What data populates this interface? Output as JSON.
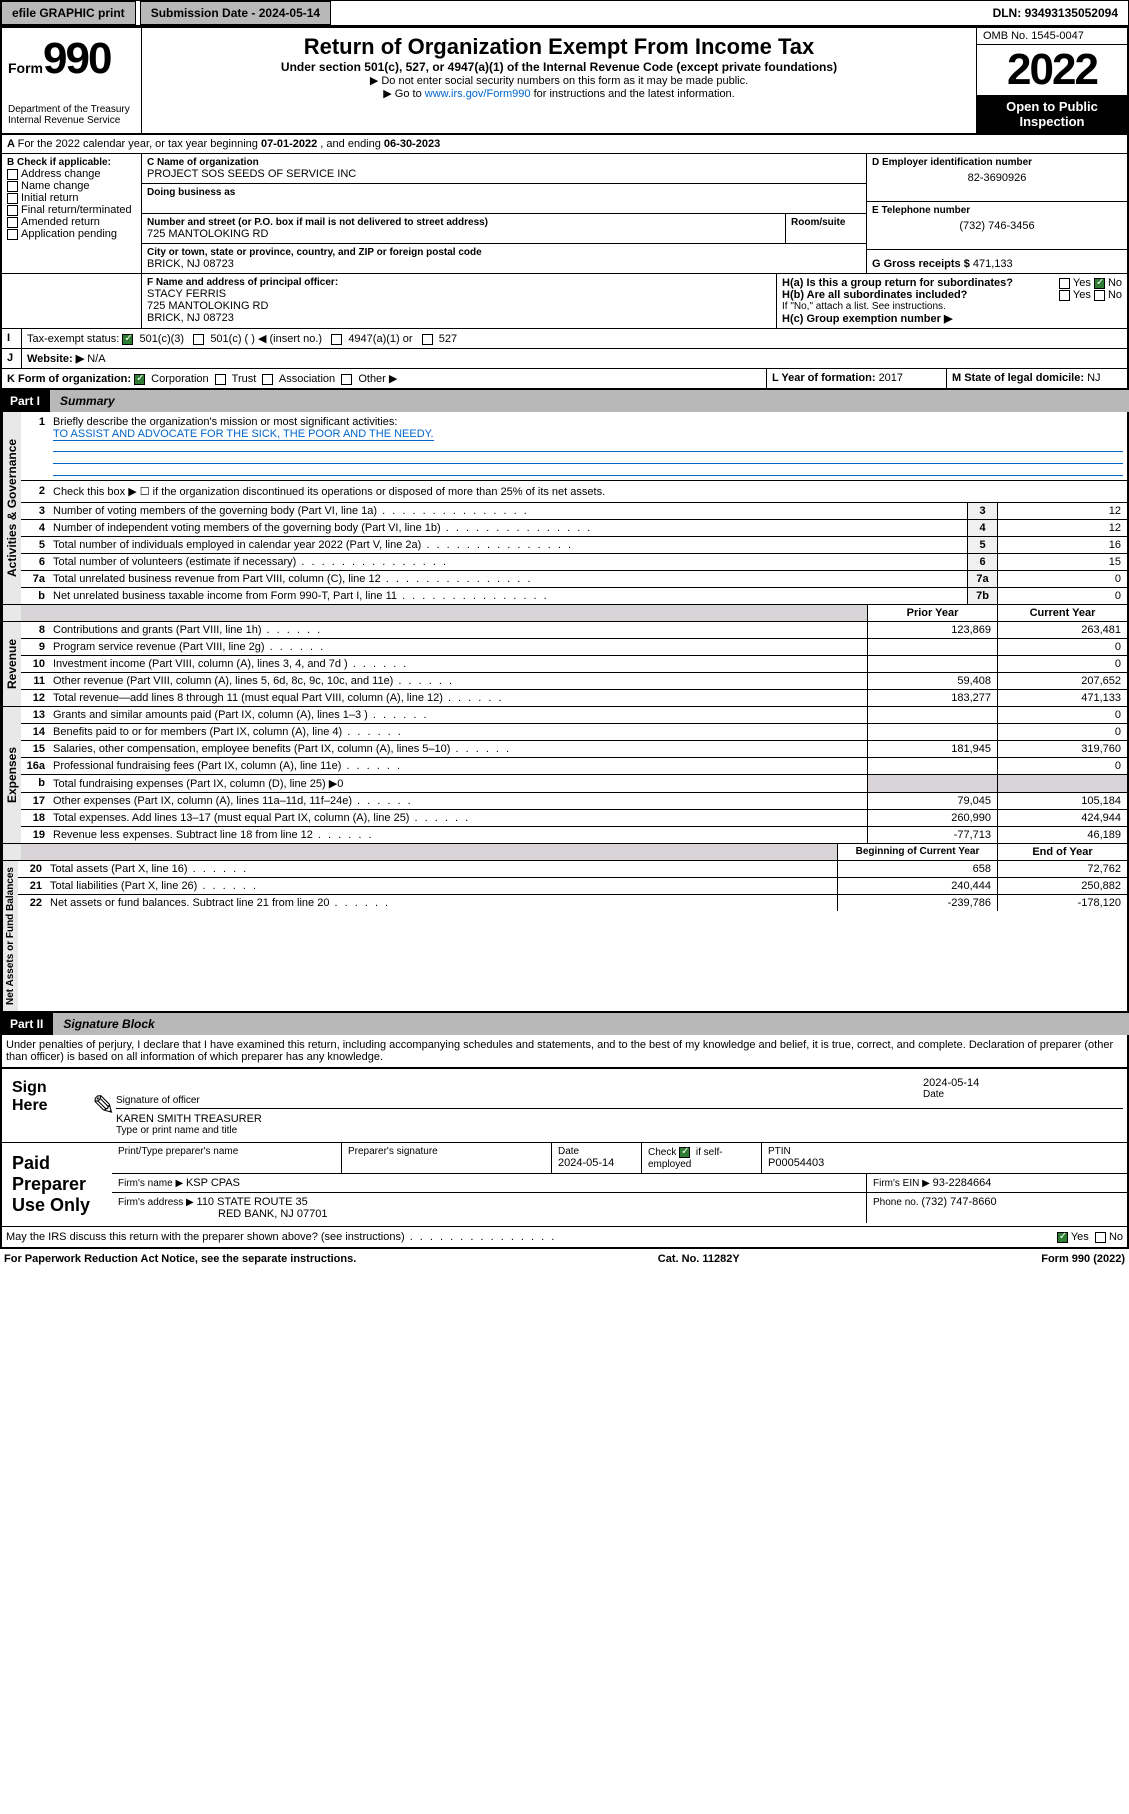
{
  "topbar": {
    "efile": "efile GRAPHIC print",
    "subdate_label": "Submission Date - ",
    "subdate": "2024-05-14",
    "dln_label": "DLN: ",
    "dln": "93493135052094"
  },
  "header": {
    "form_word": "Form",
    "form_num": "990",
    "dept": "Department of the Treasury",
    "irs": "Internal Revenue Service",
    "title": "Return of Organization Exempt From Income Tax",
    "subtitle": "Under section 501(c), 527, or 4947(a)(1) of the Internal Revenue Code (except private foundations)",
    "hint1": "▶ Do not enter social security numbers on this form as it may be made public.",
    "hint2_prefix": "▶ Go to ",
    "hint2_link": "www.irs.gov/Form990",
    "hint2_suffix": " for instructions and the latest information.",
    "omb": "OMB No. 1545-0047",
    "year": "2022",
    "open": "Open to Public Inspection"
  },
  "A": {
    "text": "For the 2022 calendar year, or tax year beginning ",
    "begin": "07-01-2022",
    "mid": " , and ending ",
    "end": "06-30-2023"
  },
  "B": {
    "label": "B Check if applicable:",
    "items": [
      "Address change",
      "Name change",
      "Initial return",
      "Final return/terminated",
      "Amended return",
      "Application pending"
    ]
  },
  "C": {
    "name_label": "C Name of organization",
    "name": "PROJECT SOS SEEDS OF SERVICE INC",
    "dba_label": "Doing business as",
    "dba": "",
    "addr_label": "Number and street (or P.O. box if mail is not delivered to street address)",
    "room_label": "Room/suite",
    "addr": "725 MANTOLOKING RD",
    "city_label": "City or town, state or province, country, and ZIP or foreign postal code",
    "city": "BRICK, NJ  08723"
  },
  "D": {
    "label": "D Employer identification number",
    "value": "82-3690926"
  },
  "E": {
    "label": "E Telephone number",
    "value": "(732) 746-3456"
  },
  "G": {
    "label": "G Gross receipts $ ",
    "value": "471,133"
  },
  "F": {
    "label": "F Name and address of principal officer:",
    "name": "STACY FERRIS",
    "addr1": "725 MANTOLOKING RD",
    "addr2": "BRICK, NJ  08723"
  },
  "H": {
    "a": "H(a)  Is this a group return for subordinates?",
    "b": "H(b)  Are all subordinates included?",
    "b_note": "If \"No,\" attach a list. See instructions.",
    "c": "H(c)  Group exemption number ▶",
    "yes": "Yes",
    "no": "No"
  },
  "I": {
    "label": "Tax-exempt status:",
    "opts": [
      "501(c)(3)",
      "501(c) (  ) ◀ (insert no.)",
      "4947(a)(1) or",
      "527"
    ]
  },
  "J": {
    "label": "Website: ▶",
    "value": "N/A"
  },
  "K": {
    "label": "K Form of organization:",
    "opts": [
      "Corporation",
      "Trust",
      "Association",
      "Other ▶"
    ]
  },
  "L": {
    "label": "L Year of formation: ",
    "value": "2017"
  },
  "M": {
    "label": "M State of legal domicile: ",
    "value": "NJ"
  },
  "part1": {
    "label": "Part I",
    "title": "Summary"
  },
  "summary": {
    "line1_label": "Briefly describe the organization's mission or most significant activities:",
    "line1_text": "TO ASSIST AND ADVOCATE FOR THE SICK, THE POOR AND THE NEEDY.",
    "line2": "Check this box ▶ ☐  if the organization discontinued its operations or disposed of more than 25% of its net assets.",
    "rows_a": [
      {
        "n": "3",
        "d": "Number of voting members of the governing body (Part VI, line 1a)",
        "box": "3",
        "v": "12"
      },
      {
        "n": "4",
        "d": "Number of independent voting members of the governing body (Part VI, line 1b)",
        "box": "4",
        "v": "12"
      },
      {
        "n": "5",
        "d": "Total number of individuals employed in calendar year 2022 (Part V, line 2a)",
        "box": "5",
        "v": "16"
      },
      {
        "n": "6",
        "d": "Total number of volunteers (estimate if necessary)",
        "box": "6",
        "v": "15"
      },
      {
        "n": "7a",
        "d": "Total unrelated business revenue from Part VIII, column (C), line 12",
        "box": "7a",
        "v": "0"
      },
      {
        "n": "b",
        "d": "Net unrelated business taxable income from Form 990-T, Part I, line 11",
        "box": "7b",
        "v": "0"
      }
    ],
    "prior_label": "Prior Year",
    "current_label": "Current Year",
    "beg_label": "Beginning of Current Year",
    "end_label": "End of Year",
    "rows_rev": [
      {
        "n": "8",
        "d": "Contributions and grants (Part VIII, line 1h)",
        "p": "123,869",
        "c": "263,481"
      },
      {
        "n": "9",
        "d": "Program service revenue (Part VIII, line 2g)",
        "p": "",
        "c": "0"
      },
      {
        "n": "10",
        "d": "Investment income (Part VIII, column (A), lines 3, 4, and 7d )",
        "p": "",
        "c": "0"
      },
      {
        "n": "11",
        "d": "Other revenue (Part VIII, column (A), lines 5, 6d, 8c, 9c, 10c, and 11e)",
        "p": "59,408",
        "c": "207,652"
      },
      {
        "n": "12",
        "d": "Total revenue—add lines 8 through 11 (must equal Part VIII, column (A), line 12)",
        "p": "183,277",
        "c": "471,133"
      }
    ],
    "rows_exp": [
      {
        "n": "13",
        "d": "Grants and similar amounts paid (Part IX, column (A), lines 1–3 )",
        "p": "",
        "c": "0"
      },
      {
        "n": "14",
        "d": "Benefits paid to or for members (Part IX, column (A), line 4)",
        "p": "",
        "c": "0"
      },
      {
        "n": "15",
        "d": "Salaries, other compensation, employee benefits (Part IX, column (A), lines 5–10)",
        "p": "181,945",
        "c": "319,760"
      },
      {
        "n": "16a",
        "d": "Professional fundraising fees (Part IX, column (A), line 11e)",
        "p": "",
        "c": "0"
      },
      {
        "n": "b",
        "d": "Total fundraising expenses (Part IX, column (D), line 25) ▶0",
        "p": null,
        "c": null
      },
      {
        "n": "17",
        "d": "Other expenses (Part IX, column (A), lines 11a–11d, 11f–24e)",
        "p": "79,045",
        "c": "105,184"
      },
      {
        "n": "18",
        "d": "Total expenses. Add lines 13–17 (must equal Part IX, column (A), line 25)",
        "p": "260,990",
        "c": "424,944"
      },
      {
        "n": "19",
        "d": "Revenue less expenses. Subtract line 18 from line 12",
        "p": "-77,713",
        "c": "46,189"
      }
    ],
    "rows_net": [
      {
        "n": "20",
        "d": "Total assets (Part X, line 16)",
        "p": "658",
        "c": "72,762"
      },
      {
        "n": "21",
        "d": "Total liabilities (Part X, line 26)",
        "p": "240,444",
        "c": "250,882"
      },
      {
        "n": "22",
        "d": "Net assets or fund balances. Subtract line 21 from line 20",
        "p": "-239,786",
        "c": "-178,120"
      }
    ],
    "side_gov": "Activities & Governance",
    "side_rev": "Revenue",
    "side_exp": "Expenses",
    "side_net": "Net Assets or Fund Balances"
  },
  "part2": {
    "label": "Part II",
    "title": "Signature Block"
  },
  "sig": {
    "penalties": "Under penalties of perjury, I declare that I have examined this return, including accompanying schedules and statements, and to the best of my knowledge and belief, it is true, correct, and complete. Declaration of preparer (other than officer) is based on all information of which preparer has any knowledge.",
    "sign_here": "Sign Here",
    "sig_line": "Signature of officer",
    "date_label": "Date",
    "sig_date": "2024-05-14",
    "name_title": "KAREN SMITH  TREASURER",
    "name_label": "Type or print name and title",
    "paid": "Paid Preparer Use Only",
    "prep_name_label": "Print/Type preparer's name",
    "prep_sig_label": "Preparer's signature",
    "prep_date_label": "Date",
    "prep_date": "2024-05-14",
    "check_label": "Check ",
    "check_suffix": " if self-employed",
    "ptin_label": "PTIN",
    "ptin": "P00054403",
    "firm_name_label": "Firm's name    ▶ ",
    "firm_name": "KSP CPAS",
    "firm_ein_label": "Firm's EIN ▶ ",
    "firm_ein": "93-2284664",
    "firm_addr_label": "Firm's address ▶ ",
    "firm_addr1": "110 STATE ROUTE 35",
    "firm_addr2": "RED BANK, NJ  07701",
    "phone_label": "Phone no. ",
    "phone": "(732) 747-8660",
    "discuss": "May the IRS discuss this return with the preparer shown above? (see instructions)"
  },
  "footer": {
    "pra": "For Paperwork Reduction Act Notice, see the separate instructions.",
    "cat": "Cat. No. 11282Y",
    "form": "Form 990 (2022)"
  }
}
